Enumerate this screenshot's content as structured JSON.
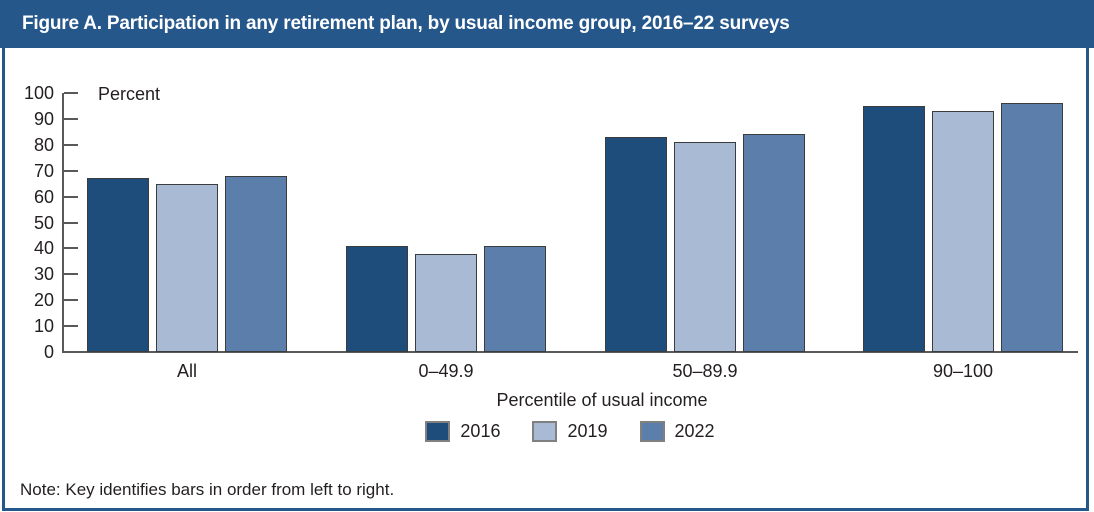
{
  "figure": {
    "title": "Figure A. Participation in any retirement plan, by usual income group, 2016–22 surveys",
    "note": "Note: Key identifies bars in order from left to right."
  },
  "colors": {
    "title_bar_bg": "#26578B",
    "frame_border": "#26578B",
    "title_text": "#FFFFFF",
    "axis": "#58595B",
    "text": "#231F20",
    "bar_border": "#3A3C3E",
    "legend_swatch_border": "#808080"
  },
  "chart_data": {
    "type": "bar",
    "title": "Figure A. Participation in any retirement plan, by usual income group, 2016–22 surveys",
    "ylabel": "Percent",
    "xlabel": "Percentile of usual income",
    "ylim": [
      0,
      100
    ],
    "yticks": [
      0,
      10,
      20,
      30,
      40,
      50,
      60,
      70,
      80,
      90,
      100
    ],
    "grid": false,
    "legend_position": "bottom",
    "categories": [
      "All",
      "0–49.9",
      "50–89.9",
      "90–100"
    ],
    "series": [
      {
        "name": "2016",
        "color": "#1E4D7C",
        "values": [
          67,
          41,
          83,
          95
        ]
      },
      {
        "name": "2019",
        "color": "#A9BBD4",
        "values": [
          65,
          38,
          81,
          93
        ]
      },
      {
        "name": "2022",
        "color": "#5C7EAA",
        "values": [
          68,
          41,
          84,
          96
        ]
      }
    ],
    "note": "Note: Key identifies bars in order from left to right."
  }
}
